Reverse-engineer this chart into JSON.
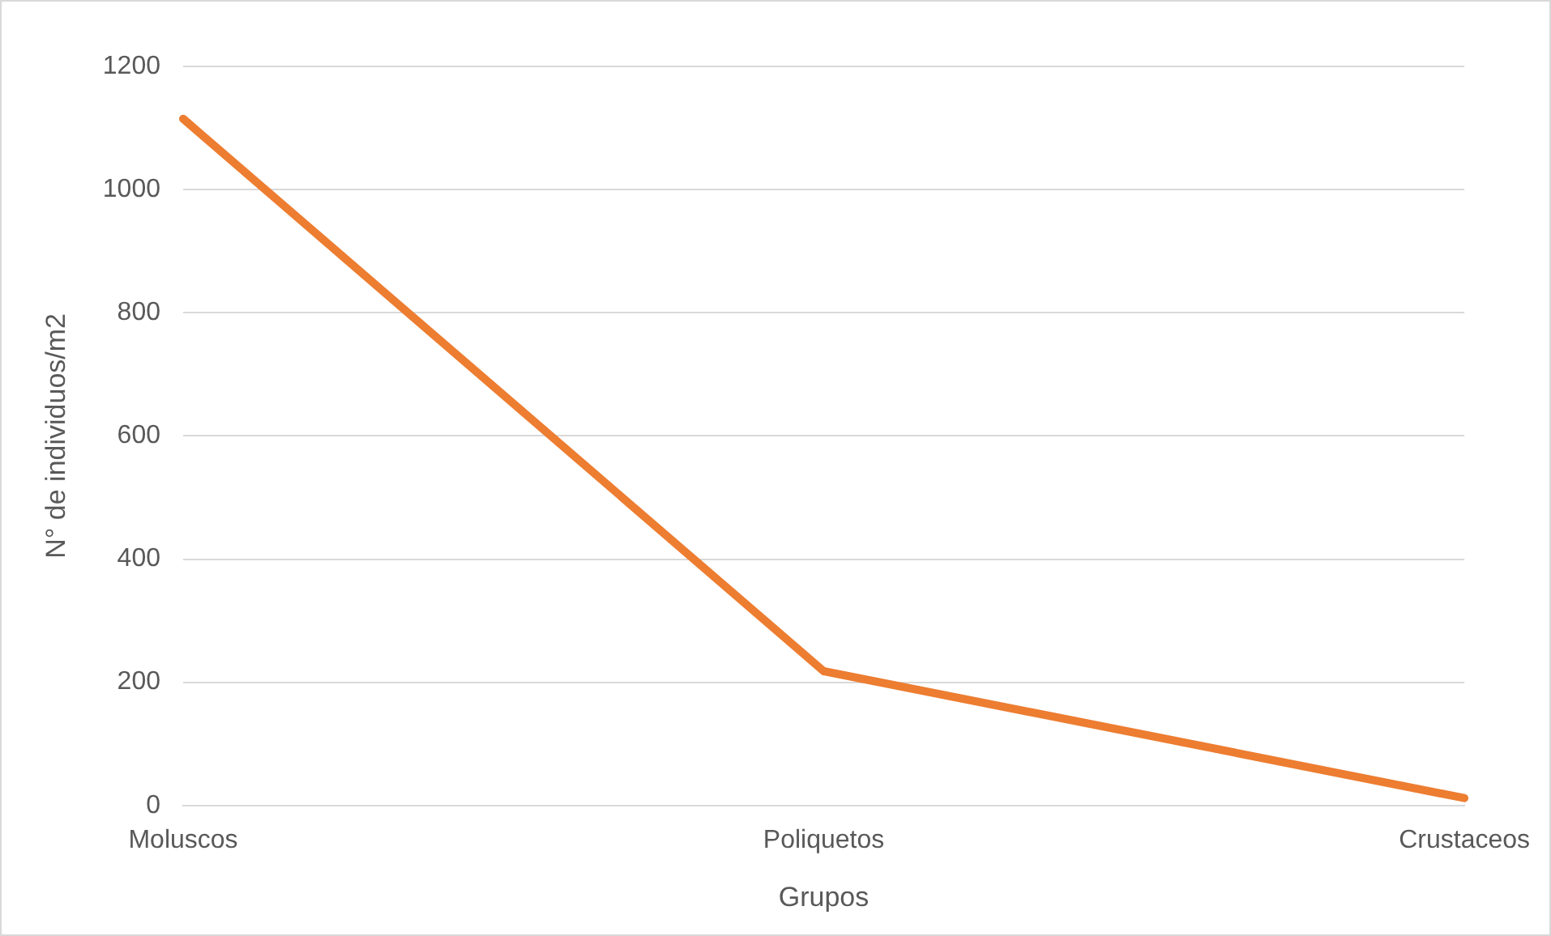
{
  "chart_data": {
    "type": "line",
    "xlabel": "Grupos",
    "ylabel": "N° de individuos/m2",
    "categories": [
      "Moluscos",
      "Poliquetos",
      "Crustaceos"
    ],
    "series": [
      {
        "color": "#ed7d31",
        "values": [
          1115,
          218,
          12
        ]
      }
    ],
    "ylim": [
      0,
      1200
    ],
    "yticks": [
      0,
      200,
      400,
      600,
      800,
      1000,
      1200
    ],
    "grid": "y",
    "legend": false,
    "marker": "none",
    "line_style": "solid"
  }
}
